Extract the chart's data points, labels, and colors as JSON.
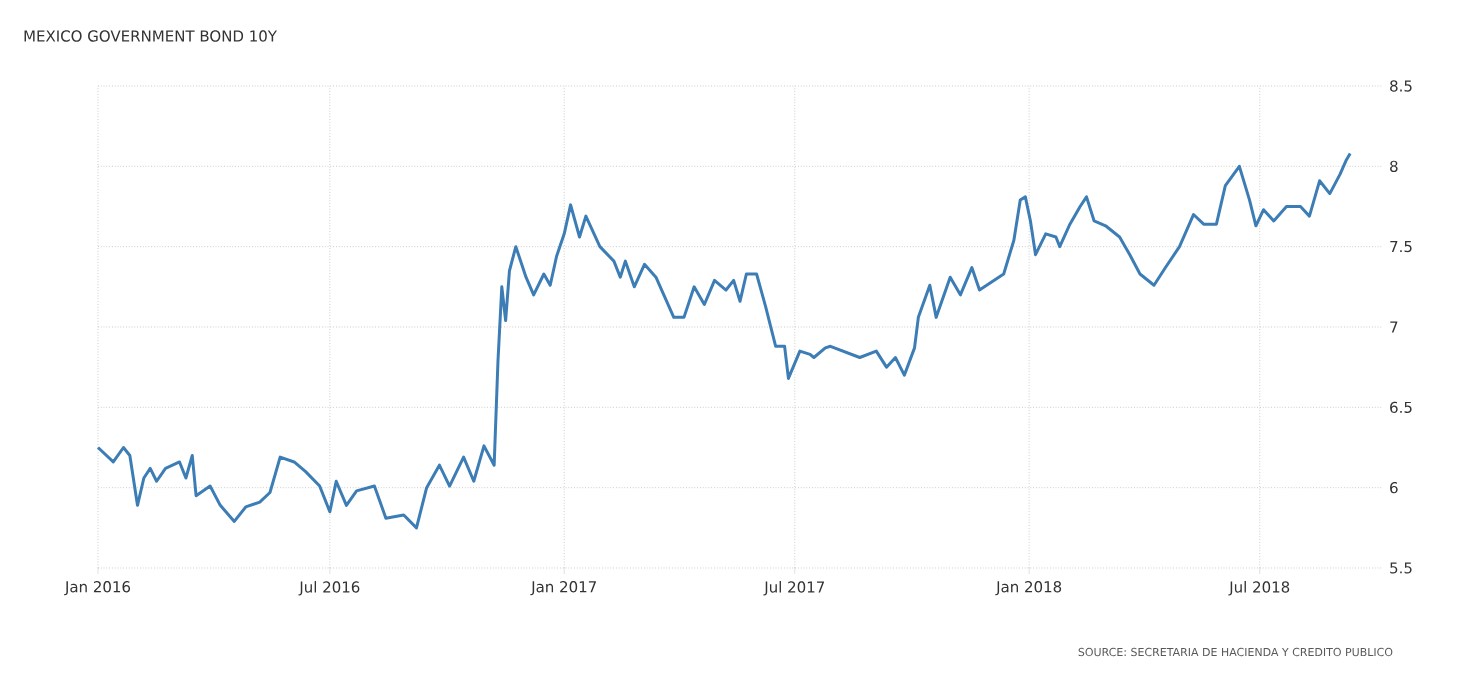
{
  "chart_data": {
    "type": "line",
    "title": "MEXICO GOVERNMENT BOND 10Y",
    "annotations": [
      "SOURCE: SECRETARIA DE HACIENDA Y CREDITO PUBLICO"
    ],
    "color": "#3d7db5",
    "grid": true,
    "xlim": [
      "2016-01-01",
      "2018-10-05"
    ],
    "ylim": [
      5.5,
      8.5
    ],
    "xticks": [
      {
        "value": "2016-01-01",
        "label": "Jan 2016"
      },
      {
        "value": "2016-07-01",
        "label": "Jul 2016"
      },
      {
        "value": "2017-01-01",
        "label": "Jan 2017"
      },
      {
        "value": "2017-07-01",
        "label": "Jul 2017"
      },
      {
        "value": "2018-01-01",
        "label": "Jan 2018"
      },
      {
        "value": "2018-07-01",
        "label": "Jul 2018"
      }
    ],
    "yticks": [
      5.5,
      6,
      6.5,
      7,
      7.5,
      8,
      8.5
    ],
    "x": [
      "2016-01-01",
      "2016-01-13",
      "2016-01-21",
      "2016-01-26",
      "2016-02-01",
      "2016-02-06",
      "2016-02-11",
      "2016-02-16",
      "2016-02-23",
      "2016-03-05",
      "2016-03-10",
      "2016-03-15",
      "2016-03-18",
      "2016-03-29",
      "2016-04-06",
      "2016-04-17",
      "2016-04-26",
      "2016-05-07",
      "2016-05-15",
      "2016-05-23",
      "2016-06-03",
      "2016-06-12",
      "2016-06-23",
      "2016-07-01",
      "2016-07-06",
      "2016-07-14",
      "2016-07-22",
      "2016-08-05",
      "2016-08-14",
      "2016-08-28",
      "2016-09-07",
      "2016-09-15",
      "2016-09-25",
      "2016-10-03",
      "2016-10-14",
      "2016-10-22",
      "2016-10-30",
      "2016-11-07",
      "2016-11-10",
      "2016-11-13",
      "2016-11-16",
      "2016-11-19",
      "2016-11-24",
      "2016-12-02",
      "2016-12-08",
      "2016-12-16",
      "2016-12-21",
      "2016-12-26",
      "2017-01-01",
      "2017-01-06",
      "2017-01-13",
      "2017-01-18",
      "2017-01-29",
      "2017-02-09",
      "2017-02-14",
      "2017-02-18",
      "2017-02-25",
      "2017-03-05",
      "2017-03-14",
      "2017-03-28",
      "2017-04-05",
      "2017-04-13",
      "2017-04-21",
      "2017-04-29",
      "2017-05-08",
      "2017-05-14",
      "2017-05-19",
      "2017-05-24",
      "2017-06-01",
      "2017-06-08",
      "2017-06-16",
      "2017-06-23",
      "2017-06-26",
      "2017-07-05",
      "2017-07-13",
      "2017-07-16",
      "2017-07-25",
      "2017-07-29",
      "2017-08-21",
      "2017-09-03",
      "2017-09-11",
      "2017-09-18",
      "2017-09-25",
      "2017-10-03",
      "2017-10-06",
      "2017-10-15",
      "2017-10-20",
      "2017-10-31",
      "2017-11-08",
      "2017-11-17",
      "2017-11-23",
      "2017-12-12",
      "2017-12-20",
      "2017-12-25",
      "2017-12-29",
      "2018-01-02",
      "2018-01-06",
      "2018-01-14",
      "2018-01-22",
      "2018-01-25",
      "2018-02-02",
      "2018-02-10",
      "2018-02-15",
      "2018-02-21",
      "2018-03-02",
      "2018-03-13",
      "2018-03-21",
      "2018-03-29",
      "2018-04-09",
      "2018-04-18",
      "2018-04-29",
      "2018-05-10",
      "2018-05-18",
      "2018-05-28",
      "2018-06-04",
      "2018-06-15",
      "2018-06-23",
      "2018-06-28",
      "2018-07-04",
      "2018-07-12",
      "2018-07-22",
      "2018-08-02",
      "2018-08-09",
      "2018-08-17",
      "2018-08-25",
      "2018-09-02",
      "2018-09-07",
      "2018-09-10"
    ],
    "values": [
      6.25,
      6.16,
      6.25,
      6.2,
      5.89,
      6.06,
      6.12,
      6.04,
      6.12,
      6.16,
      6.06,
      6.2,
      5.95,
      6.01,
      5.89,
      5.79,
      5.88,
      5.91,
      5.97,
      6.19,
      6.16,
      6.1,
      6.01,
      5.85,
      6.04,
      5.89,
      5.98,
      6.01,
      5.81,
      5.83,
      5.75,
      6.0,
      6.14,
      6.01,
      6.19,
      6.04,
      6.26,
      6.14,
      6.79,
      7.25,
      7.04,
      7.35,
      7.5,
      7.31,
      7.2,
      7.33,
      7.26,
      7.44,
      7.58,
      7.76,
      7.56,
      7.69,
      7.5,
      7.41,
      7.31,
      7.41,
      7.25,
      7.39,
      7.31,
      7.06,
      7.06,
      7.25,
      7.14,
      7.29,
      7.23,
      7.29,
      7.16,
      7.33,
      7.33,
      7.13,
      6.88,
      6.88,
      6.68,
      6.85,
      6.83,
      6.81,
      6.87,
      6.88,
      6.81,
      6.85,
      6.75,
      6.81,
      6.7,
      6.87,
      7.06,
      7.26,
      7.06,
      7.31,
      7.2,
      7.37,
      7.23,
      7.33,
      7.54,
      7.79,
      7.81,
      7.66,
      7.45,
      7.58,
      7.56,
      7.5,
      7.64,
      7.75,
      7.81,
      7.66,
      7.63,
      7.56,
      7.45,
      7.33,
      7.26,
      7.37,
      7.5,
      7.7,
      7.64,
      7.64,
      7.88,
      8.0,
      7.79,
      7.63,
      7.73,
      7.66,
      7.75,
      7.75,
      7.69,
      7.91,
      7.83,
      7.95,
      8.04,
      8.08
    ]
  }
}
